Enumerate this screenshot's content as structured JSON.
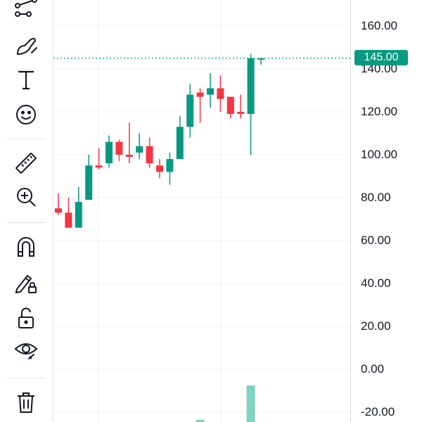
{
  "toolbar": {
    "tools": [
      {
        "name": "pattern-tools",
        "icon": "pattern-icon"
      },
      {
        "name": "brush",
        "icon": "brush-icon"
      },
      {
        "name": "text",
        "icon": "text-icon"
      },
      {
        "name": "emoji",
        "icon": "smiley-icon"
      },
      {
        "name": "measure",
        "icon": "ruler-icon"
      },
      {
        "name": "zoom-in",
        "icon": "zoom-in-icon"
      },
      {
        "name": "magnet-mode",
        "icon": "magnet-icon"
      },
      {
        "name": "lock-drawings",
        "icon": "pencil-lock-icon"
      },
      {
        "name": "lock-all",
        "icon": "lock-open-icon"
      },
      {
        "name": "hide-drawings",
        "icon": "eye-icon"
      },
      {
        "name": "remove-drawings",
        "icon": "trash-icon"
      }
    ]
  },
  "price_axis": {
    "ticks": [
      "160.00",
      "140.00",
      "120.00",
      "100.00",
      "80.00",
      "60.00",
      "40.00",
      "20.00",
      "0.00",
      "-20.00"
    ],
    "current_price_label": "145.00",
    "current_price_value": 145
  },
  "colors": {
    "up": "#089981",
    "down": "#f23645",
    "volume": "#7fd3bf",
    "grid": "#f0f1f3",
    "axis_text": "#131722"
  },
  "chart_data": {
    "type": "candlestick",
    "ylim": [
      -25,
      172
    ],
    "y_ticks": [
      160,
      140,
      120,
      100,
      80,
      60,
      40,
      20,
      0,
      -20
    ],
    "grid": true,
    "current_price_line": 145,
    "candles": [
      {
        "o": 75,
        "h": 82,
        "l": 72,
        "c": 73
      },
      {
        "o": 73,
        "h": 80,
        "l": 66,
        "c": 66
      },
      {
        "o": 66,
        "h": 85,
        "l": 66,
        "c": 78
      },
      {
        "o": 79,
        "h": 100,
        "l": 79,
        "c": 95
      },
      {
        "o": 95,
        "h": 103,
        "l": 93,
        "c": 94
      },
      {
        "o": 96,
        "h": 109,
        "l": 94,
        "c": 106
      },
      {
        "o": 106,
        "h": 107,
        "l": 97,
        "c": 100
      },
      {
        "o": 100,
        "h": 115,
        "l": 96,
        "c": 99
      },
      {
        "o": 101,
        "h": 110,
        "l": 98,
        "c": 104
      },
      {
        "o": 104,
        "h": 108,
        "l": 94,
        "c": 96
      },
      {
        "o": 95,
        "h": 98,
        "l": 89,
        "c": 92
      },
      {
        "o": 92,
        "h": 101,
        "l": 86,
        "c": 98
      },
      {
        "o": 98,
        "h": 118,
        "l": 98,
        "c": 113
      },
      {
        "o": 113,
        "h": 133,
        "l": 108,
        "c": 128
      },
      {
        "o": 129,
        "h": 131,
        "l": 115,
        "c": 127
      },
      {
        "o": 128,
        "h": 138,
        "l": 122,
        "c": 131
      },
      {
        "o": 131,
        "h": 137,
        "l": 120,
        "c": 126
      },
      {
        "o": 127,
        "h": 127,
        "l": 117,
        "c": 119
      },
      {
        "o": 120,
        "h": 128,
        "l": 117,
        "c": 119
      },
      {
        "o": 119,
        "h": 147,
        "l": 100,
        "c": 145
      },
      {
        "o": 145,
        "h": 145,
        "l": 142,
        "c": 145
      }
    ],
    "volume": [
      0,
      0,
      0,
      0,
      0,
      0,
      0,
      0,
      0,
      0,
      0,
      0,
      0,
      0,
      1,
      0,
      0,
      0,
      0,
      16,
      0
    ]
  }
}
